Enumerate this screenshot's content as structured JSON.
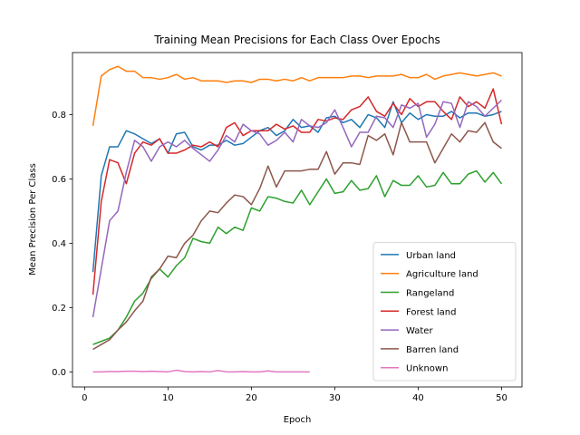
{
  "chart_data": {
    "type": "line",
    "title": "Training Mean Precisions for Each Class Over Epochs",
    "xlabel": "Epoch",
    "ylabel": "Mean Precision Per Class",
    "xlim": [
      -1.45,
      52.45
    ],
    "ylim": [
      -0.047,
      0.993
    ],
    "xticks": [
      0,
      10,
      20,
      30,
      40,
      50
    ],
    "yticks": [
      0.0,
      0.2,
      0.4,
      0.6,
      0.8
    ],
    "ytick_labels": [
      "0.0",
      "0.2",
      "0.4",
      "0.6",
      "0.8"
    ],
    "grid": false,
    "legend_position": "lower-right",
    "series": [
      {
        "name": "Urban land",
        "color": "#1f77b4",
        "x": [
          1,
          2,
          3,
          4,
          5,
          6,
          7,
          8,
          9,
          10,
          11,
          12,
          13,
          14,
          15,
          16,
          17,
          18,
          19,
          20,
          21,
          22,
          23,
          24,
          25,
          26,
          27,
          28,
          29,
          30,
          31,
          32,
          33,
          34,
          35,
          36,
          37,
          38,
          39,
          40,
          41,
          42,
          43,
          44,
          45,
          46,
          47,
          48,
          49,
          50
        ],
        "values": [
          0.31,
          0.61,
          0.7,
          0.7,
          0.75,
          0.74,
          0.725,
          0.71,
          0.725,
          0.68,
          0.74,
          0.745,
          0.7,
          0.69,
          0.705,
          0.705,
          0.72,
          0.705,
          0.71,
          0.73,
          0.75,
          0.76,
          0.735,
          0.75,
          0.785,
          0.76,
          0.765,
          0.745,
          0.79,
          0.795,
          0.775,
          0.785,
          0.76,
          0.8,
          0.79,
          0.76,
          0.84,
          0.775,
          0.805,
          0.785,
          0.8,
          0.795,
          0.795,
          0.81,
          0.79,
          0.805,
          0.805,
          0.795,
          0.8,
          0.81
        ]
      },
      {
        "name": "Agriculture land",
        "color": "#ff7f0e",
        "x": [
          1,
          2,
          3,
          4,
          5,
          6,
          7,
          8,
          9,
          10,
          11,
          12,
          13,
          14,
          15,
          16,
          17,
          18,
          19,
          20,
          21,
          22,
          23,
          24,
          25,
          26,
          27,
          28,
          29,
          30,
          31,
          32,
          33,
          34,
          35,
          36,
          37,
          38,
          39,
          40,
          41,
          42,
          43,
          44,
          45,
          46,
          47,
          48,
          49,
          50
        ],
        "values": [
          0.765,
          0.92,
          0.94,
          0.95,
          0.935,
          0.935,
          0.915,
          0.915,
          0.91,
          0.915,
          0.925,
          0.91,
          0.915,
          0.905,
          0.905,
          0.905,
          0.9,
          0.905,
          0.905,
          0.9,
          0.91,
          0.91,
          0.905,
          0.91,
          0.905,
          0.915,
          0.905,
          0.915,
          0.915,
          0.915,
          0.915,
          0.92,
          0.92,
          0.915,
          0.92,
          0.92,
          0.92,
          0.925,
          0.915,
          0.915,
          0.925,
          0.91,
          0.92,
          0.925,
          0.93,
          0.925,
          0.92,
          0.925,
          0.93,
          0.92
        ]
      },
      {
        "name": "Rangeland",
        "color": "#2ca02c",
        "x": [
          1,
          2,
          3,
          4,
          5,
          6,
          7,
          8,
          9,
          10,
          11,
          12,
          13,
          14,
          15,
          16,
          17,
          18,
          19,
          20,
          21,
          22,
          23,
          24,
          25,
          26,
          27,
          28,
          29,
          30,
          31,
          32,
          33,
          34,
          35,
          36,
          37,
          38,
          39,
          40,
          41,
          42,
          43,
          44,
          45,
          46,
          47,
          48,
          49,
          50
        ],
        "values": [
          0.085,
          0.095,
          0.105,
          0.13,
          0.17,
          0.22,
          0.245,
          0.29,
          0.32,
          0.295,
          0.33,
          0.355,
          0.415,
          0.405,
          0.4,
          0.45,
          0.43,
          0.45,
          0.44,
          0.51,
          0.5,
          0.545,
          0.54,
          0.53,
          0.525,
          0.565,
          0.52,
          0.56,
          0.6,
          0.555,
          0.56,
          0.595,
          0.565,
          0.57,
          0.61,
          0.545,
          0.595,
          0.58,
          0.58,
          0.61,
          0.575,
          0.58,
          0.62,
          0.585,
          0.585,
          0.615,
          0.625,
          0.59,
          0.62,
          0.585
        ]
      },
      {
        "name": "Forest land",
        "color": "#d62728",
        "x": [
          1,
          2,
          3,
          4,
          5,
          6,
          7,
          8,
          9,
          10,
          11,
          12,
          13,
          14,
          15,
          16,
          17,
          18,
          19,
          20,
          21,
          22,
          23,
          24,
          25,
          26,
          27,
          28,
          29,
          30,
          31,
          32,
          33,
          34,
          35,
          36,
          37,
          38,
          39,
          40,
          41,
          42,
          43,
          44,
          45,
          46,
          47,
          48,
          49,
          50
        ],
        "values": [
          0.24,
          0.53,
          0.66,
          0.65,
          0.585,
          0.68,
          0.715,
          0.705,
          0.725,
          0.68,
          0.68,
          0.69,
          0.705,
          0.7,
          0.715,
          0.7,
          0.76,
          0.775,
          0.735,
          0.75,
          0.75,
          0.75,
          0.77,
          0.755,
          0.765,
          0.745,
          0.745,
          0.785,
          0.78,
          0.79,
          0.785,
          0.815,
          0.825,
          0.855,
          0.81,
          0.795,
          0.835,
          0.8,
          0.85,
          0.825,
          0.84,
          0.84,
          0.81,
          0.785,
          0.855,
          0.825,
          0.84,
          0.82,
          0.88,
          0.77
        ]
      },
      {
        "name": "Water",
        "color": "#9467bd",
        "x": [
          1,
          2,
          3,
          4,
          5,
          6,
          7,
          8,
          9,
          10,
          11,
          12,
          13,
          14,
          15,
          16,
          17,
          18,
          19,
          20,
          21,
          22,
          23,
          24,
          25,
          26,
          27,
          28,
          29,
          30,
          31,
          32,
          33,
          34,
          35,
          36,
          37,
          38,
          39,
          40,
          41,
          42,
          43,
          44,
          45,
          46,
          47,
          48,
          49,
          50
        ],
        "values": [
          0.17,
          0.32,
          0.47,
          0.5,
          0.62,
          0.72,
          0.7,
          0.655,
          0.7,
          0.715,
          0.7,
          0.72,
          0.695,
          0.675,
          0.655,
          0.69,
          0.735,
          0.715,
          0.77,
          0.75,
          0.74,
          0.705,
          0.72,
          0.745,
          0.715,
          0.785,
          0.765,
          0.76,
          0.775,
          0.815,
          0.76,
          0.7,
          0.745,
          0.745,
          0.795,
          0.79,
          0.76,
          0.83,
          0.82,
          0.835,
          0.73,
          0.77,
          0.84,
          0.835,
          0.76,
          0.84,
          0.825,
          0.795,
          0.82,
          0.845
        ]
      },
      {
        "name": "Barren land",
        "color": "#8c564b",
        "x": [
          1,
          2,
          3,
          4,
          5,
          6,
          7,
          8,
          9,
          10,
          11,
          12,
          13,
          14,
          15,
          16,
          17,
          18,
          19,
          20,
          21,
          22,
          23,
          24,
          25,
          26,
          27,
          28,
          29,
          30,
          31,
          32,
          33,
          34,
          35,
          36,
          37,
          38,
          39,
          40,
          41,
          42,
          43,
          44,
          45,
          46,
          47,
          48,
          49,
          50
        ],
        "values": [
          0.07,
          0.085,
          0.1,
          0.13,
          0.155,
          0.19,
          0.22,
          0.295,
          0.32,
          0.36,
          0.355,
          0.4,
          0.425,
          0.47,
          0.5,
          0.495,
          0.525,
          0.55,
          0.545,
          0.52,
          0.57,
          0.64,
          0.575,
          0.625,
          0.625,
          0.625,
          0.63,
          0.63,
          0.685,
          0.615,
          0.65,
          0.65,
          0.645,
          0.735,
          0.72,
          0.74,
          0.675,
          0.775,
          0.715,
          0.715,
          0.715,
          0.65,
          0.695,
          0.74,
          0.715,
          0.75,
          0.745,
          0.775,
          0.715,
          0.695
        ]
      },
      {
        "name": "Unknown",
        "color": "#e377c2",
        "x": [
          1,
          2,
          3,
          4,
          5,
          6,
          7,
          8,
          9,
          10,
          11,
          12,
          13,
          14,
          15,
          16,
          17,
          18,
          19,
          20,
          21,
          22,
          23,
          24,
          25,
          26,
          27
        ],
        "values": [
          0.0,
          0.0,
          0.001,
          0.001,
          0.002,
          0.002,
          0.001,
          0.002,
          0.001,
          0.0,
          0.005,
          0.001,
          0.0,
          0.001,
          0.0,
          0.004,
          0.0,
          0.0,
          0.001,
          0.0,
          0.0,
          0.003,
          0.0,
          0.0,
          0.0,
          0.0,
          0.0
        ]
      }
    ]
  }
}
